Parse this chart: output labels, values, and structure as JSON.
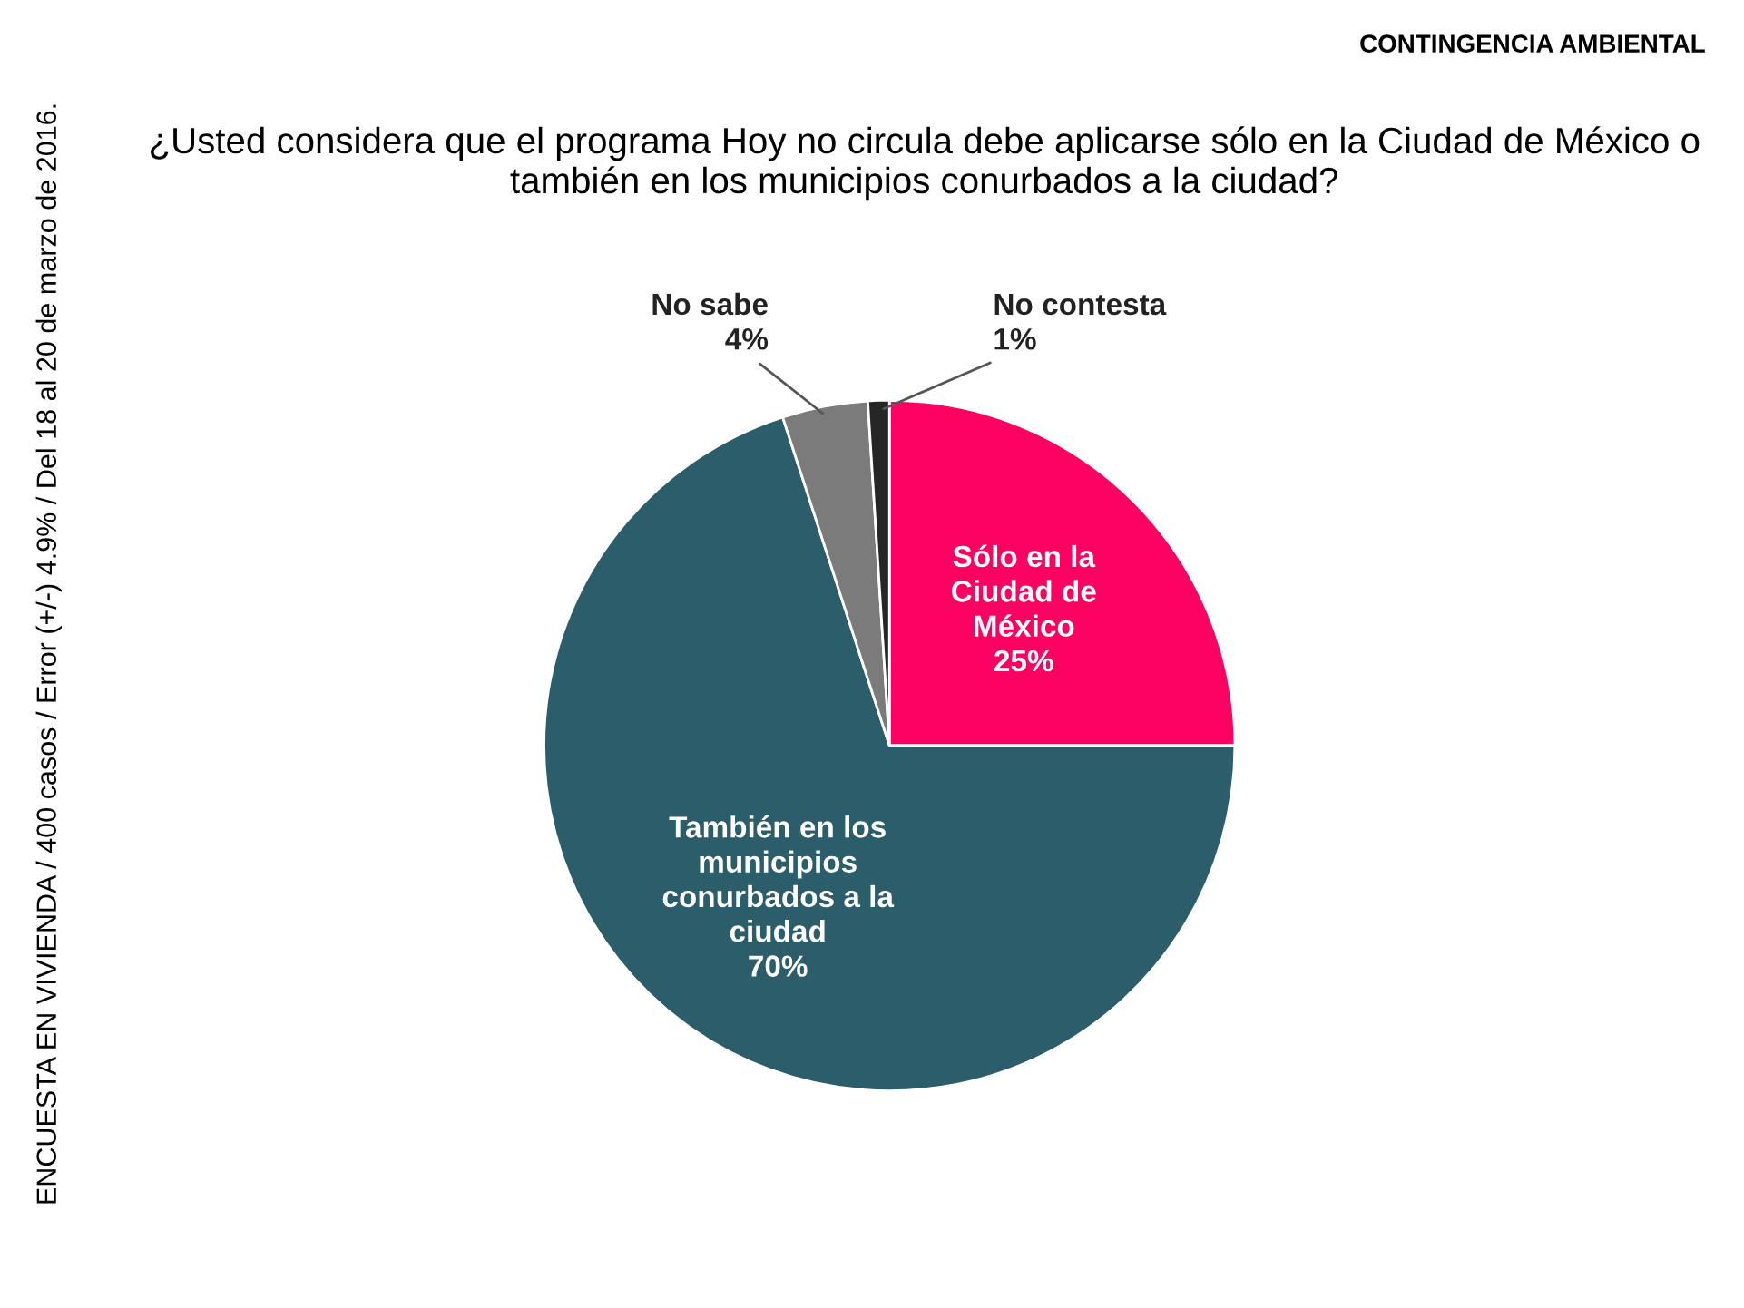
{
  "chart_data": {
    "type": "pie",
    "title": "¿Usted considera que el programa Hoy no circula debe aplicarse sólo en la Ciudad de México o también en los municipios conurbados a la ciudad?",
    "categories": [
      "Sólo en la\nCiudad de\nMéxico",
      "También en los\nmunicipios\nconurbados a la\nciudad",
      "No sabe",
      "No contesta"
    ],
    "values": [
      25,
      70,
      4,
      1
    ],
    "colors": [
      "#fc0062",
      "#2b5d6b",
      "#7b7b7b",
      "#262626"
    ],
    "value_labels": [
      "25%",
      "70%",
      "4%",
      "1%"
    ],
    "legend": false,
    "annotations": [
      "CONTINGENCIA AMBIENTAL",
      "ENCUESTA EN VIVIENDA / 400 casos / Error (+/-) 4.9% / Del 18 al 20 de marzo de 2016."
    ]
  }
}
